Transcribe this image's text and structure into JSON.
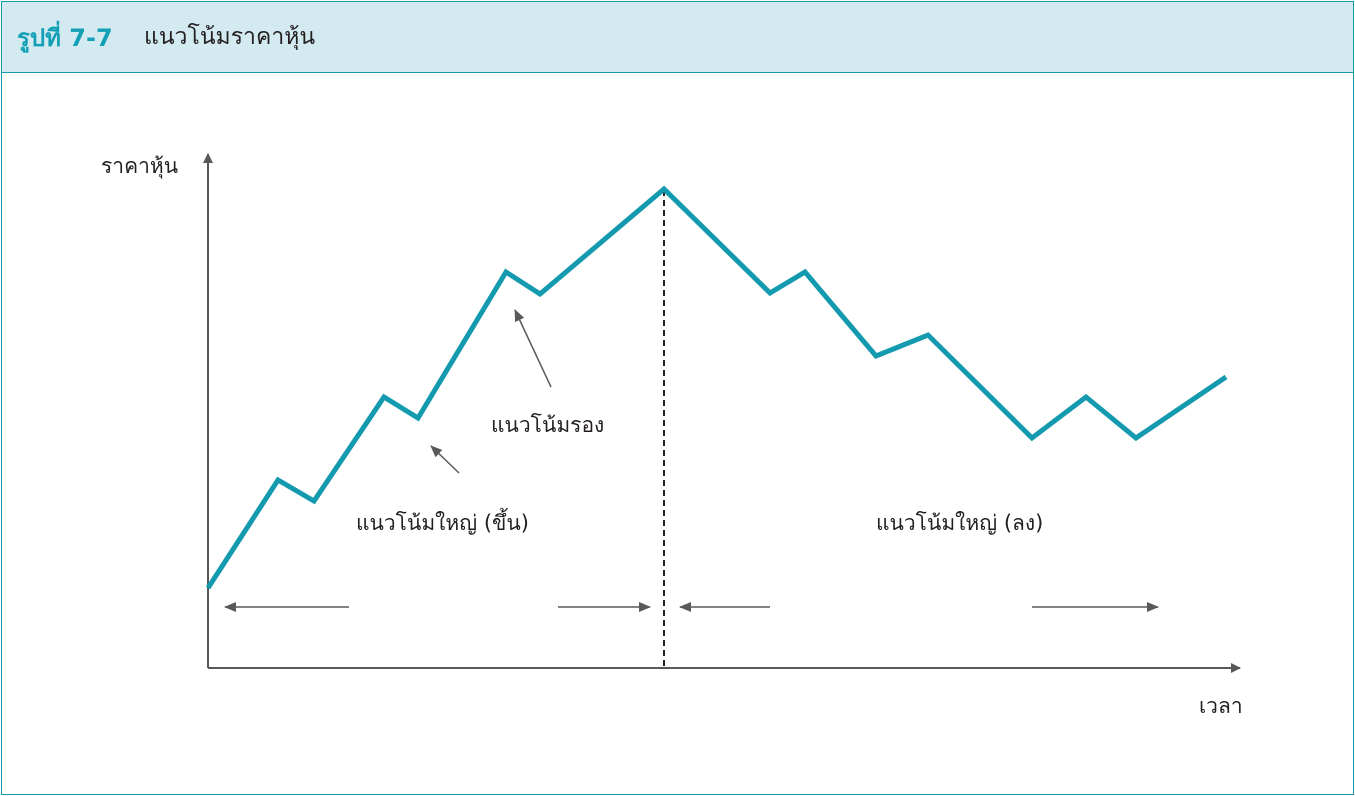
{
  "header": {
    "figure_label": "รูปที่ 7-7",
    "figure_title": "แนวโน้มราคาหุ้น"
  },
  "diagram": {
    "y_axis_label": "ราคาหุ้น",
    "x_axis_label": "เวลา",
    "annotations": {
      "secondary_trend": "แนวโน้มรอง",
      "primary_trend_up": "แนวโน้มใหญ่ (ขึ้น)",
      "primary_trend_down": "แนวโน้มใหญ่ (ลง)"
    },
    "colors": {
      "price_line": "#149aaf",
      "axes": "#58595b",
      "header_bg": "#d4eaf1"
    }
  }
}
